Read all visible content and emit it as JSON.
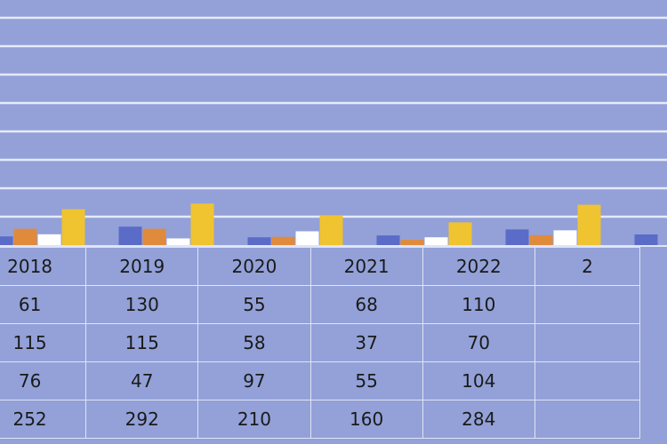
{
  "chart_data": {
    "type": "bar",
    "categories": [
      "2018",
      "2019",
      "2020",
      "2021",
      "2022",
      "2"
    ],
    "series": [
      {
        "color": "#5b6bc8",
        "values": [
          61,
          130,
          55,
          68,
          110,
          75
        ]
      },
      {
        "color": "#e08a3c",
        "values": [
          115,
          115,
          58,
          37,
          70,
          null
        ]
      },
      {
        "color": "#ffffff",
        "values": [
          76,
          47,
          97,
          55,
          104,
          null
        ]
      },
      {
        "color": "#f0c330",
        "values": [
          252,
          292,
          210,
          160,
          284,
          null
        ]
      }
    ],
    "ylim": [
      0,
      1800
    ],
    "grid": true,
    "table": {
      "years": [
        "2018",
        "2019",
        "2020",
        "2021",
        "2022",
        "2"
      ],
      "rows": [
        [
          "61",
          "130",
          "55",
          "68",
          "110",
          ""
        ],
        [
          "115",
          "115",
          "58",
          "37",
          "70",
          ""
        ],
        [
          "76",
          "47",
          "97",
          "55",
          "104",
          ""
        ],
        [
          "252",
          "292",
          "210",
          "160",
          "284",
          ""
        ]
      ]
    }
  }
}
